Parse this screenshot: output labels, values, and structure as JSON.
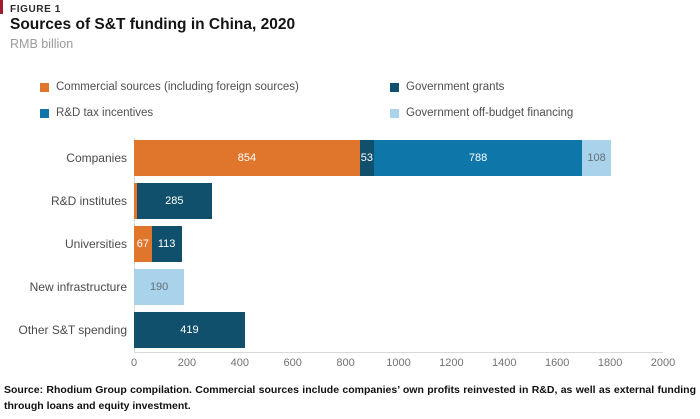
{
  "figure": {
    "eyebrow": "FIGURE 1",
    "title": "Sources of S&T funding in China, 2020",
    "subtitle": "RMB billion",
    "accent_color": "#9E1B32"
  },
  "palette": {
    "commercial": "#E0752C",
    "grants": "#10506C",
    "tax": "#0E76A8",
    "offbudget": "#A9D2EB"
  },
  "legend": [
    {
      "key": "commercial",
      "label": "Commercial sources (including foreign sources)"
    },
    {
      "key": "grants",
      "label": "Government grants"
    },
    {
      "key": "tax",
      "label": "R&D tax incentives"
    },
    {
      "key": "offbudget",
      "label": "Government off-budget financing"
    }
  ],
  "chart_data": {
    "type": "bar",
    "orientation": "horizontal",
    "stacked": true,
    "title": "Sources of S&T funding in China, 2020",
    "xlabel": "RMB billion",
    "xlim": [
      0,
      2000
    ],
    "x_ticks": [
      0,
      200,
      400,
      600,
      800,
      1000,
      1200,
      1400,
      1600,
      1800,
      2000
    ],
    "grid": false,
    "legend_position": "top",
    "categories": [
      "Companies",
      "R&D institutes",
      "Universities",
      "New infrastructure",
      "Other S&T spending"
    ],
    "series": [
      {
        "name": "Commercial sources (including foreign sources)",
        "color": "#E0752C",
        "values": [
          854,
          10,
          67,
          0,
          0
        ]
      },
      {
        "name": "Government grants",
        "color": "#10506C",
        "values": [
          53,
          285,
          113,
          0,
          419
        ]
      },
      {
        "name": "R&D tax incentives",
        "color": "#0E76A8",
        "values": [
          788,
          0,
          0,
          0,
          0
        ]
      },
      {
        "name": "Government off-budget financing",
        "color": "#A9D2EB",
        "values": [
          108,
          0,
          0,
          190,
          0
        ]
      }
    ],
    "rows": [
      {
        "label": "Companies",
        "segments": [
          {
            "key": "commercial",
            "value": 854,
            "text": "854",
            "text_color": "#ffffff"
          },
          {
            "key": "grants",
            "value": 53,
            "text": "53",
            "text_color": "#ffffff"
          },
          {
            "key": "tax",
            "value": 788,
            "text": "788",
            "text_color": "#ffffff"
          },
          {
            "key": "offbudget",
            "value": 108,
            "text": "108",
            "text_color": "#64707B"
          }
        ]
      },
      {
        "label": "R&D institutes",
        "segments": [
          {
            "key": "commercial",
            "value": 10,
            "text": "",
            "text_color": "#ffffff"
          },
          {
            "key": "grants",
            "value": 285,
            "text": "285",
            "text_color": "#ffffff"
          }
        ]
      },
      {
        "label": "Universities",
        "segments": [
          {
            "key": "commercial",
            "value": 67,
            "text": "67",
            "text_color": "#ffffff"
          },
          {
            "key": "grants",
            "value": 113,
            "text": "113",
            "text_color": "#ffffff"
          }
        ]
      },
      {
        "label": "New infrastructure",
        "segments": [
          {
            "key": "offbudget",
            "value": 190,
            "text": "190",
            "text_color": "#64707B"
          }
        ]
      },
      {
        "label": "Other S&T spending",
        "segments": [
          {
            "key": "grants",
            "value": 419,
            "text": "419",
            "text_color": "#ffffff"
          }
        ]
      }
    ]
  },
  "footer": {
    "source": "Source: Rhodium Group compilation. Commercial sources include companies’ own profits reinvested in R&D, as well as external funding through loans and equity investment."
  }
}
